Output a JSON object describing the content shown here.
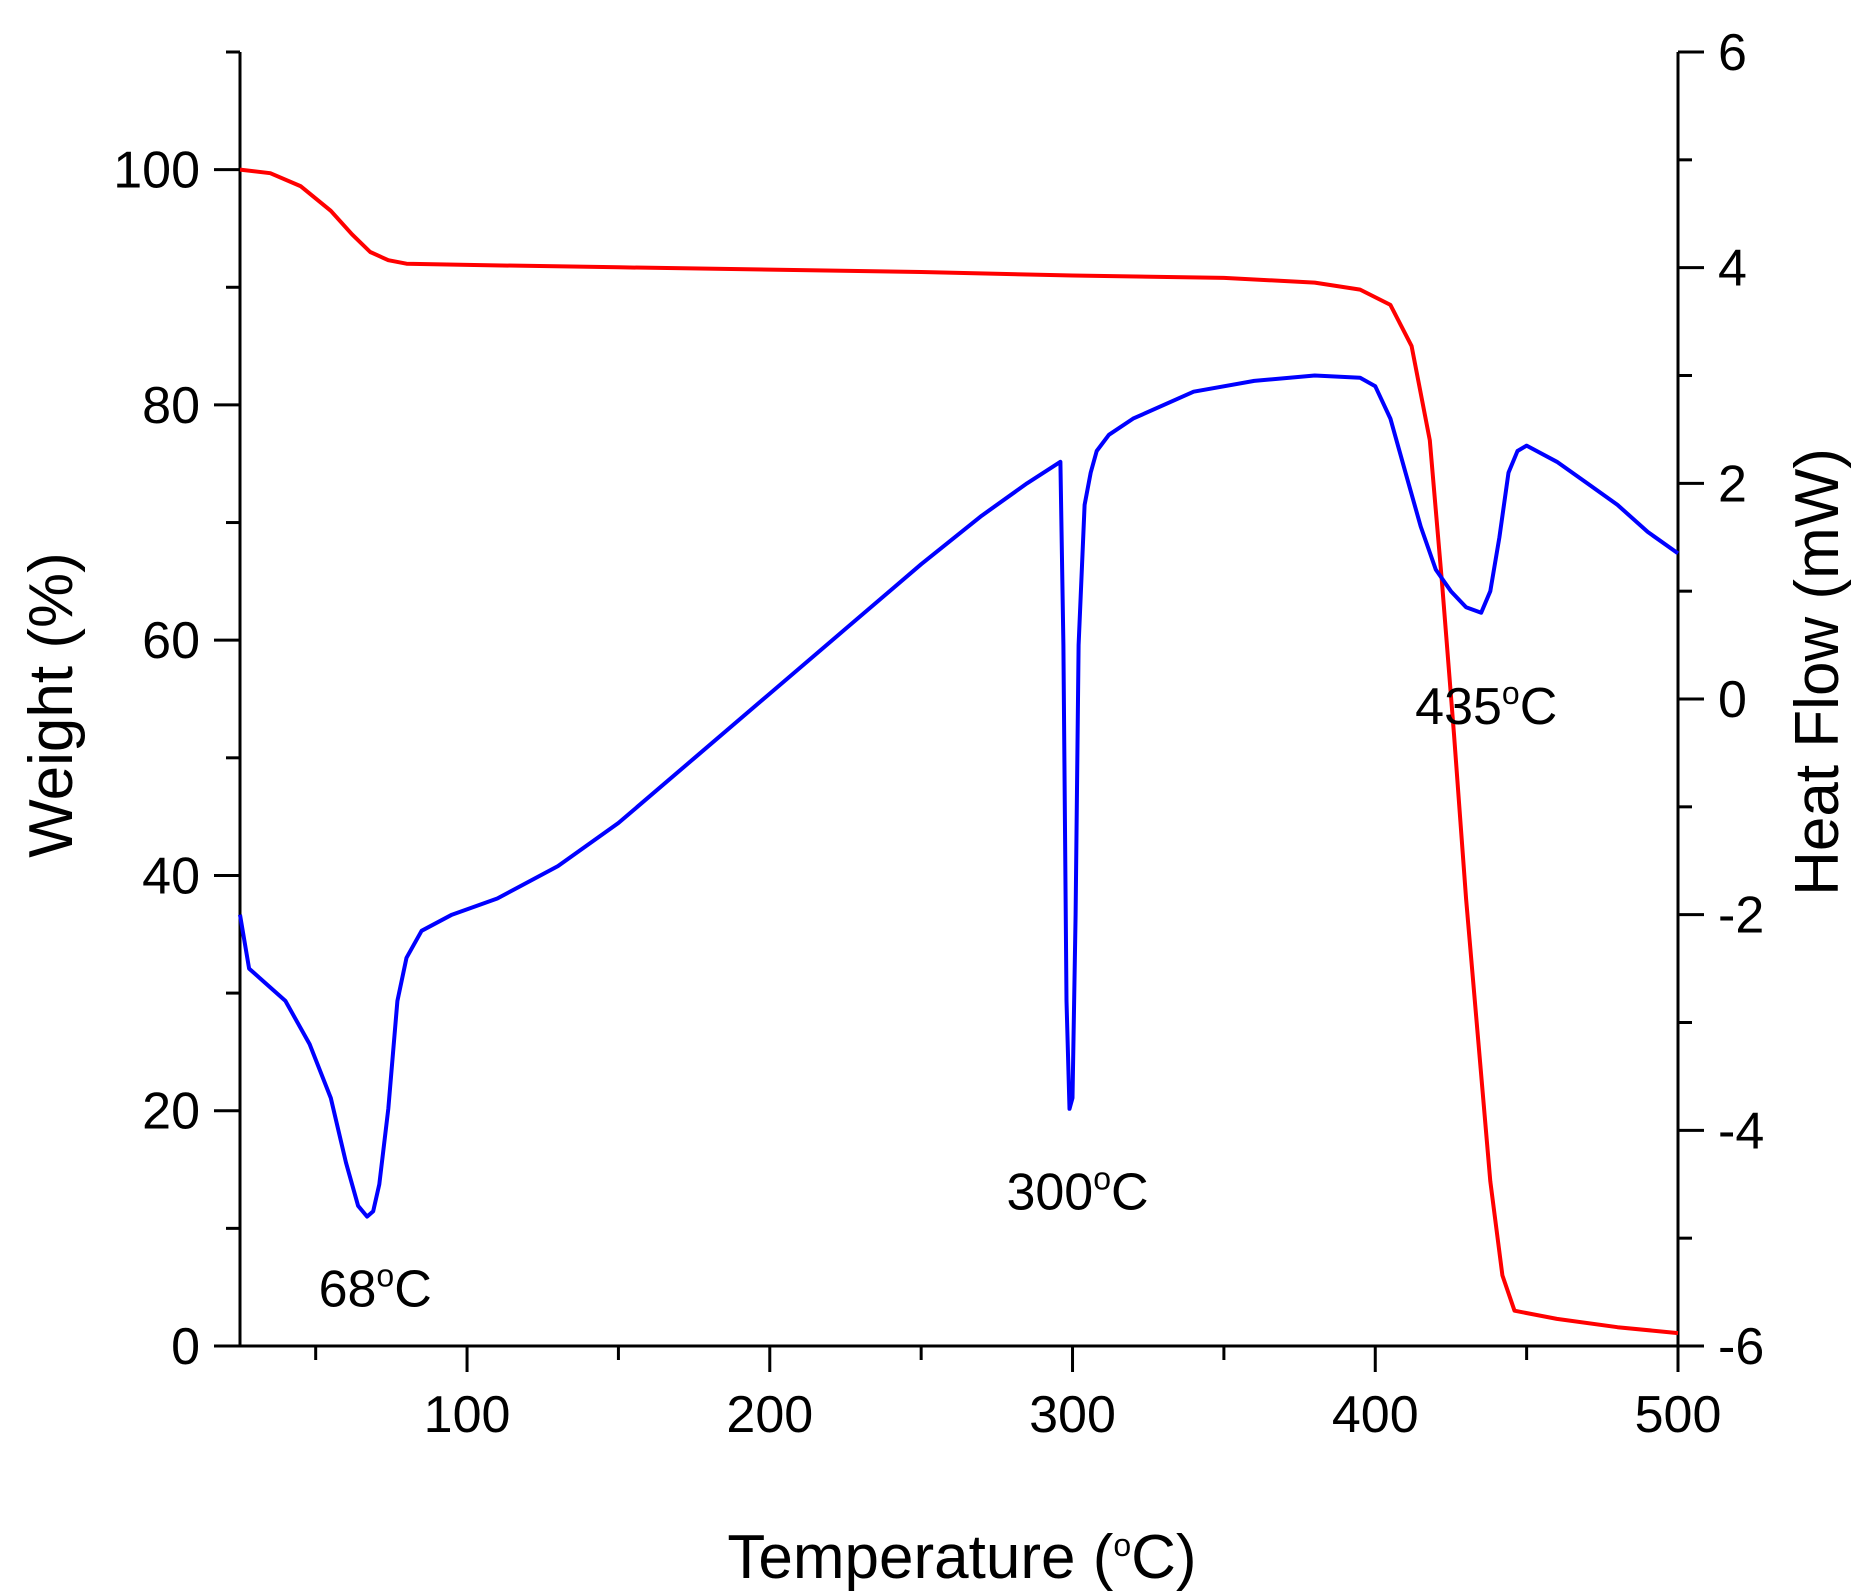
{
  "chart_data": {
    "type": "line",
    "title": "",
    "xlabel": "Temperature (°C)",
    "xlabel_parts": {
      "prefix": "Temperature (",
      "degree": "o",
      "suffix": "C)"
    },
    "ylabel_left": "Weight (%)",
    "ylabel_right": "Heat Flow (mW)",
    "xlim": [
      25,
      500
    ],
    "ylim_left": [
      0,
      110
    ],
    "ylim_right": [
      -6,
      6
    ],
    "x_ticks": [
      100,
      200,
      300,
      400,
      500
    ],
    "x_tick_labels": [
      "100",
      "200",
      "300",
      "400",
      "500"
    ],
    "y_left_ticks": [
      0,
      20,
      40,
      60,
      80,
      100
    ],
    "y_left_tick_labels": [
      "0",
      "20",
      "40",
      "60",
      "80",
      "100"
    ],
    "y_right_ticks": [
      -6,
      -4,
      -2,
      0,
      2,
      4,
      6
    ],
    "y_right_tick_labels": [
      "-6",
      "-4",
      "-2",
      "0",
      "2",
      "4",
      "6"
    ],
    "grid": false,
    "series": [
      {
        "name": "Weight",
        "axis": "left",
        "color": "#ff0000",
        "x": [
          25,
          35,
          45,
          55,
          62,
          68,
          74,
          80,
          100,
          150,
          200,
          250,
          300,
          350,
          380,
          395,
          405,
          412,
          418,
          422,
          426,
          430,
          434,
          438,
          442,
          446,
          460,
          480,
          500
        ],
        "y": [
          100,
          99.7,
          98.6,
          96.5,
          94.5,
          93.0,
          92.3,
          92.0,
          91.9,
          91.7,
          91.5,
          91.3,
          91.0,
          90.8,
          90.4,
          89.8,
          88.5,
          85.0,
          77.0,
          65.0,
          52.0,
          38.0,
          26.0,
          14.0,
          6.0,
          3.0,
          2.3,
          1.6,
          1.1
        ]
      },
      {
        "name": "Heat Flow",
        "axis": "right",
        "color": "#0000ff",
        "x": [
          25,
          28,
          32,
          40,
          48,
          55,
          60,
          64,
          67,
          69,
          71,
          74,
          77,
          80,
          85,
          95,
          110,
          130,
          150,
          175,
          200,
          225,
          250,
          270,
          285,
          296,
          297,
          298,
          299,
          300,
          301,
          302,
          304,
          306,
          308,
          312,
          320,
          340,
          360,
          380,
          395,
          400,
          405,
          410,
          415,
          420,
          425,
          430,
          435,
          438,
          441,
          444,
          447,
          450,
          460,
          470,
          480,
          490,
          500
        ],
        "y": [
          -2.0,
          -2.5,
          -2.6,
          -2.8,
          -3.2,
          -3.7,
          -4.3,
          -4.7,
          -4.8,
          -4.75,
          -4.5,
          -3.8,
          -2.8,
          -2.4,
          -2.15,
          -2.0,
          -1.85,
          -1.55,
          -1.15,
          -0.55,
          0.05,
          0.65,
          1.25,
          1.7,
          2.0,
          2.2,
          0.5,
          -2.8,
          -3.8,
          -3.7,
          -2.0,
          0.5,
          1.8,
          2.1,
          2.3,
          2.45,
          2.6,
          2.85,
          2.95,
          3.0,
          2.98,
          2.9,
          2.6,
          2.1,
          1.6,
          1.2,
          1.0,
          0.85,
          0.8,
          1.0,
          1.5,
          2.1,
          2.3,
          2.35,
          2.2,
          2.0,
          1.8,
          1.55,
          1.35
        ]
      }
    ],
    "annotations": [
      {
        "id": "peak-68",
        "prefix": "68",
        "degree": "o",
        "suffix": "C",
        "anchor_x": 68,
        "anchor_y_right": -5.3
      },
      {
        "id": "peak-300",
        "prefix": "300",
        "degree": "o",
        "suffix": "C",
        "anchor_x": 300,
        "anchor_y_right": -4.4
      },
      {
        "id": "peak-435",
        "prefix": "435",
        "degree": "o",
        "suffix": "C",
        "anchor_x": 435,
        "anchor_y_right": 0.1
      }
    ]
  }
}
